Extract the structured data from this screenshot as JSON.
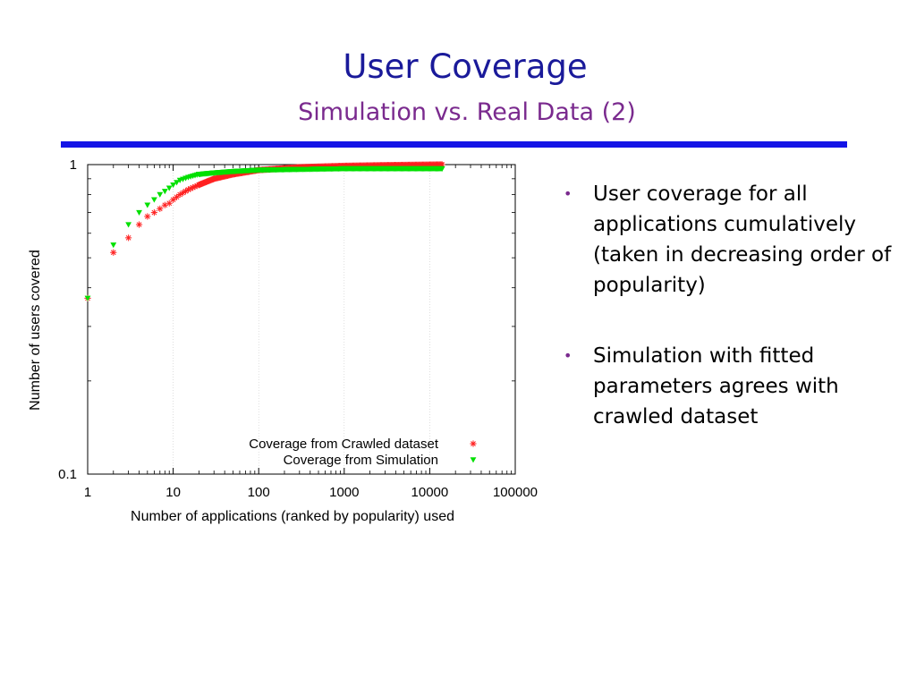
{
  "slide": {
    "title": "User Coverage",
    "subtitle": "Simulation vs. Real Data (2)",
    "bullets": [
      "User coverage for all applications cumulatively (taken in decreasing order of popularity)",
      "Simulation with fitted parameters agrees with crawled dataset"
    ],
    "bullet_marker": "•"
  },
  "colors": {
    "title": "#1a1a9a",
    "subtitle": "#7a2a8e",
    "rule": "#1414e6",
    "crawled": "#ff2020",
    "simulation": "#00e000"
  },
  "chart_data": {
    "type": "scatter",
    "xlabel": "Number of applications (ranked by popularity) used",
    "ylabel": "Number of users covered",
    "xscale": "log",
    "yscale": "log",
    "xlim": [
      1,
      100000
    ],
    "ylim": [
      0.1,
      1
    ],
    "xticks": [
      "1",
      "10",
      "100",
      "1000",
      "10000",
      "100000"
    ],
    "yticks": [
      "0.1",
      "1"
    ],
    "grid": "vertical",
    "legend_position": "bottom-right",
    "series": [
      {
        "name": "Coverage from Crawled dataset",
        "marker": "asterisk",
        "points": [
          [
            1,
            0.37
          ],
          [
            2,
            0.52
          ],
          [
            3,
            0.58
          ],
          [
            4,
            0.64
          ],
          [
            5,
            0.68
          ],
          [
            6,
            0.7
          ],
          [
            7,
            0.72
          ],
          [
            8,
            0.74
          ],
          [
            9,
            0.75
          ],
          [
            10,
            0.77
          ],
          [
            12,
            0.8
          ],
          [
            15,
            0.83
          ],
          [
            20,
            0.86
          ],
          [
            30,
            0.9
          ],
          [
            50,
            0.93
          ],
          [
            100,
            0.96
          ],
          [
            300,
            0.98
          ],
          [
            1000,
            0.99
          ],
          [
            3000,
            0.995
          ],
          [
            14000,
            1.0
          ]
        ]
      },
      {
        "name": "Coverage from Simulation",
        "marker": "triangle-down",
        "points": [
          [
            1,
            0.37
          ],
          [
            2,
            0.55
          ],
          [
            3,
            0.64
          ],
          [
            4,
            0.7
          ],
          [
            5,
            0.74
          ],
          [
            6,
            0.77
          ],
          [
            7,
            0.8
          ],
          [
            8,
            0.82
          ],
          [
            9,
            0.84
          ],
          [
            10,
            0.86
          ],
          [
            12,
            0.89
          ],
          [
            15,
            0.91
          ],
          [
            20,
            0.93
          ],
          [
            30,
            0.94
          ],
          [
            50,
            0.95
          ],
          [
            100,
            0.96
          ],
          [
            300,
            0.965
          ],
          [
            1000,
            0.97
          ],
          [
            3000,
            0.97
          ],
          [
            14000,
            0.97
          ]
        ]
      }
    ]
  }
}
